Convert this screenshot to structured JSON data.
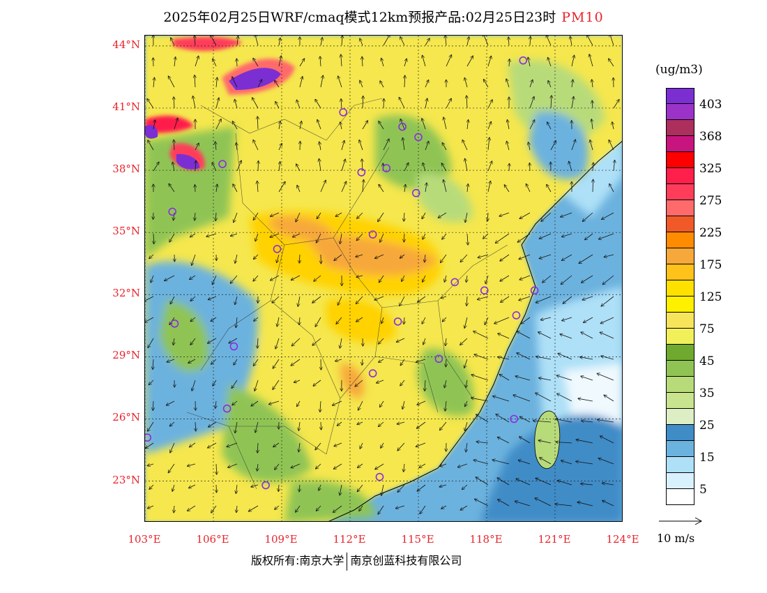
{
  "title": {
    "main": "2025年02月25日WRF/cmaq模式12km预报产品:02月25日23时",
    "species": "PM10"
  },
  "colors": {
    "axis_label": "#e8232c",
    "ocean_light": "#aee0f7",
    "ocean_mid": "#6cb2de",
    "ocean_deep": "#3f8cc7",
    "land_yellow": "#f5e74d",
    "land_gold": "#ffd200",
    "land_orange": "#f7a83a",
    "land_green": "#8fc454",
    "marker": "#8b2be2"
  },
  "axes": {
    "lat_labels": [
      "44°N",
      "41°N",
      "38°N",
      "35°N",
      "32°N",
      "29°N",
      "26°N",
      "23°N"
    ],
    "lon_labels": [
      "103°E",
      "106°E",
      "109°E",
      "112°E",
      "115°E",
      "118°E",
      "121°E",
      "124°E"
    ],
    "lat_values": [
      44,
      41,
      38,
      35,
      32,
      29,
      26,
      23
    ],
    "lon_values": [
      103,
      106,
      109,
      112,
      115,
      118,
      121,
      124
    ],
    "lat_range": [
      21,
      44.5
    ],
    "lon_range": [
      103,
      124
    ]
  },
  "legend": {
    "unit": "(ug/m3)",
    "bins": [
      {
        "label": "403",
        "color": "#7b2fd3"
      },
      {
        "label": "",
        "color": "#9b33c9"
      },
      {
        "label": "368",
        "color": "#ad2f5e"
      },
      {
        "label": "",
        "color": "#c8147f"
      },
      {
        "label": "325",
        "color": "#ff0000"
      },
      {
        "label": "",
        "color": "#ff1f4b"
      },
      {
        "label": "275",
        "color": "#ff3d5a"
      },
      {
        "label": "",
        "color": "#ff6b6b"
      },
      {
        "label": "225",
        "color": "#f05a28"
      },
      {
        "label": "",
        "color": "#ff8c00"
      },
      {
        "label": "175",
        "color": "#f7a83a"
      },
      {
        "label": "",
        "color": "#ffc21a"
      },
      {
        "label": "125",
        "color": "#ffe100"
      },
      {
        "label": "",
        "color": "#fff000"
      },
      {
        "label": "75",
        "color": "#f7e45a"
      },
      {
        "label": "",
        "color": "#f2f05a"
      },
      {
        "label": "45",
        "color": "#6faa2e"
      },
      {
        "label": "",
        "color": "#8fc454"
      },
      {
        "label": "35",
        "color": "#b8db7a"
      },
      {
        "label": "",
        "color": "#c9e48f"
      },
      {
        "label": "25",
        "color": "#deeec4"
      },
      {
        "label": "",
        "color": "#3f8cc7"
      },
      {
        "label": "15",
        "color": "#6cb2de"
      },
      {
        "label": "",
        "color": "#aee0f7"
      },
      {
        "label": "5",
        "color": "#d9f1fc"
      },
      {
        "label": "",
        "color": "#ffffff"
      }
    ]
  },
  "wind_reference": {
    "label": "10 m/s"
  },
  "cities": [
    {
      "lon": 119.6,
      "lat": 43.3
    },
    {
      "lon": 111.7,
      "lat": 40.8
    },
    {
      "lon": 114.3,
      "lat": 40.1
    },
    {
      "lon": 115.0,
      "lat": 39.6
    },
    {
      "lon": 106.4,
      "lat": 38.3
    },
    {
      "lon": 112.5,
      "lat": 37.9
    },
    {
      "lon": 113.6,
      "lat": 38.1
    },
    {
      "lon": 114.9,
      "lat": 36.9
    },
    {
      "lon": 104.2,
      "lat": 36.0
    },
    {
      "lon": 113.0,
      "lat": 34.9
    },
    {
      "lon": 108.8,
      "lat": 34.2
    },
    {
      "lon": 116.6,
      "lat": 32.6
    },
    {
      "lon": 117.9,
      "lat": 32.2
    },
    {
      "lon": 120.1,
      "lat": 32.2
    },
    {
      "lon": 104.3,
      "lat": 30.6
    },
    {
      "lon": 114.1,
      "lat": 30.7
    },
    {
      "lon": 119.3,
      "lat": 31.0
    },
    {
      "lon": 106.9,
      "lat": 29.5
    },
    {
      "lon": 115.9,
      "lat": 28.9
    },
    {
      "lon": 113.0,
      "lat": 28.2
    },
    {
      "lon": 106.6,
      "lat": 26.5
    },
    {
      "lon": 119.2,
      "lat": 26.0
    },
    {
      "lon": 103.1,
      "lat": 25.1
    },
    {
      "lon": 108.3,
      "lat": 22.8
    },
    {
      "lon": 113.3,
      "lat": 23.2
    }
  ],
  "copyright": {
    "left": "版权所有:南京大学",
    "right": "南京创蓝科技有限公司"
  }
}
